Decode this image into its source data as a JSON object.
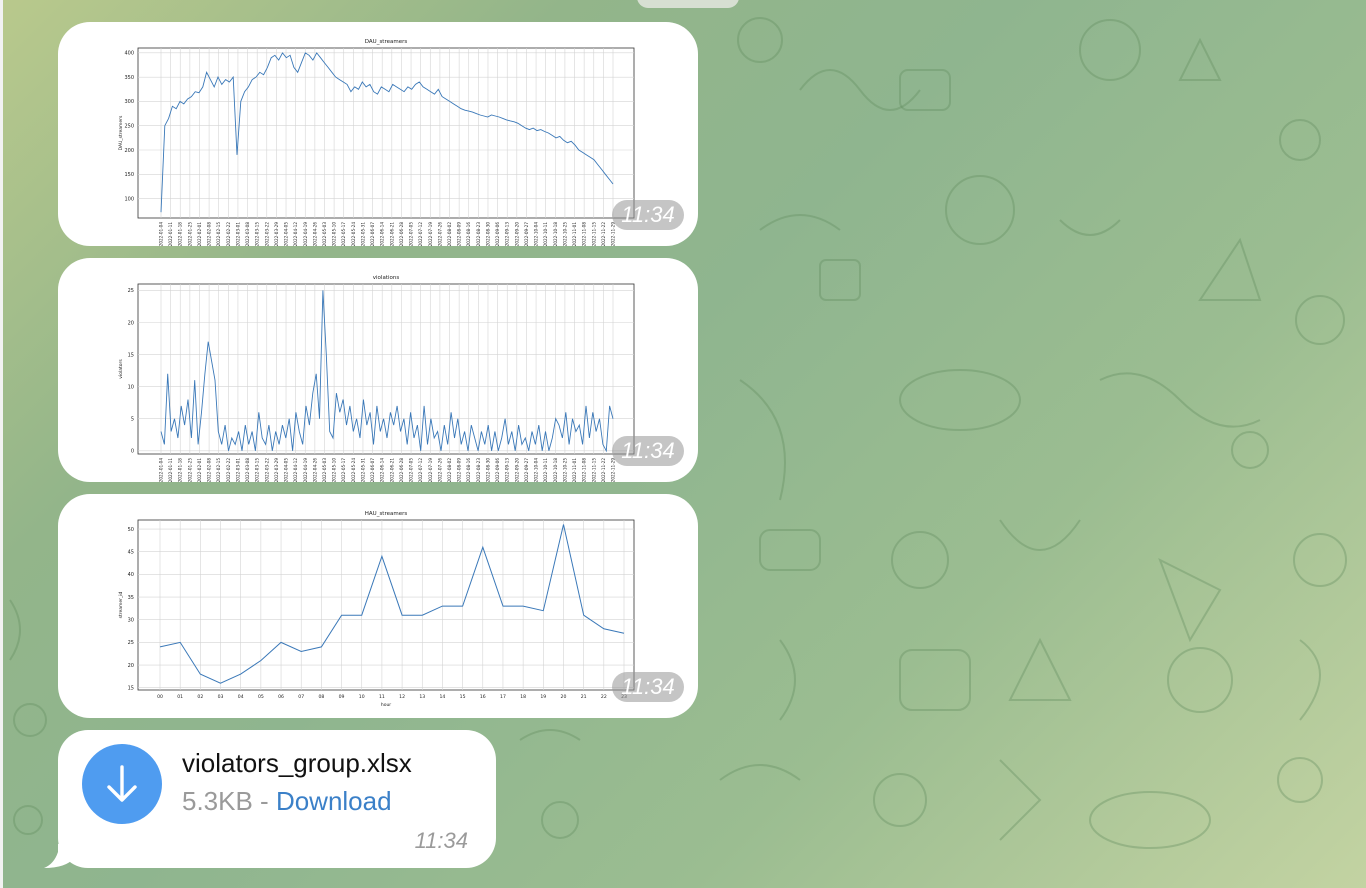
{
  "messages": [
    {
      "type": "photo",
      "time": "11:34",
      "chart_data": {
        "type": "line",
        "title": "DAU_streamers",
        "ylabel": "DAU_streamers",
        "xlabel": "",
        "ylim": [
          60,
          410
        ],
        "yticks": [
          100,
          150,
          200,
          250,
          300,
          350,
          400
        ],
        "x_tick_labels": [
          "2022-01-04",
          "2022-01-11",
          "2022-01-18",
          "2022-01-25",
          "2022-02-01",
          "2022-02-08",
          "2022-02-15",
          "2022-02-22",
          "2022-03-01",
          "2022-03-08",
          "2022-03-15",
          "2022-03-22",
          "2022-03-29",
          "2022-04-05",
          "2022-04-12",
          "2022-04-19",
          "2022-04-26",
          "2022-05-03",
          "2022-05-10",
          "2022-05-17",
          "2022-05-24",
          "2022-05-31",
          "2022-06-07",
          "2022-06-14",
          "2022-06-21",
          "2022-06-28",
          "2022-07-05",
          "2022-07-12",
          "2022-07-19",
          "2022-07-26",
          "2022-08-02",
          "2022-08-09",
          "2022-08-16",
          "2022-08-23",
          "2022-08-30",
          "2022-09-06",
          "2022-09-13",
          "2022-09-20",
          "2022-09-27",
          "2022-10-04",
          "2022-10-11",
          "2022-10-18",
          "2022-10-25",
          "2022-11-01",
          "2022-11-08",
          "2022-11-15",
          "2022-11-22",
          "2022-11-29"
        ],
        "grid": true,
        "series": [
          {
            "color": "#3a78b8",
            "values": [
              72,
              250,
              265,
              290,
              285,
              300,
              295,
              305,
              310,
              320,
              318,
              330,
              360,
              345,
              330,
              350,
              335,
              345,
              340,
              350,
              190,
              300,
              320,
              330,
              345,
              350,
              360,
              355,
              370,
              390,
              395,
              385,
              400,
              390,
              395,
              370,
              360,
              380,
              400,
              395,
              385,
              400,
              390,
              380,
              370,
              360,
              350,
              345,
              340,
              335,
              320,
              330,
              325,
              340,
              330,
              335,
              320,
              315,
              330,
              325,
              320,
              335,
              330,
              325,
              320,
              330,
              325,
              335,
              340,
              330,
              325,
              320,
              315,
              325,
              310,
              305,
              300,
              295,
              290,
              285,
              282,
              280,
              278,
              275,
              272,
              270,
              268,
              272,
              270,
              268,
              265,
              262,
              260,
              258,
              255,
              250,
              245,
              242,
              245,
              240,
              242,
              238,
              235,
              230,
              225,
              228,
              220,
              215,
              218,
              210,
              200,
              195,
              190,
              185,
              180,
              170,
              160,
              150,
              140,
              130
            ]
          }
        ]
      }
    },
    {
      "type": "photo",
      "time": "11:34",
      "chart_data": {
        "type": "line",
        "title": "violations",
        "ylabel": "violators",
        "xlabel": "",
        "ylim": [
          -0.5,
          26
        ],
        "yticks": [
          0,
          5,
          10,
          15,
          20,
          25
        ],
        "x_tick_labels": [
          "2022-01-04",
          "2022-01-11",
          "2022-01-18",
          "2022-01-25",
          "2022-02-01",
          "2022-02-08",
          "2022-02-15",
          "2022-02-22",
          "2022-03-01",
          "2022-03-08",
          "2022-03-15",
          "2022-03-22",
          "2022-03-29",
          "2022-04-05",
          "2022-04-12",
          "2022-04-19",
          "2022-04-26",
          "2022-05-03",
          "2022-05-10",
          "2022-05-17",
          "2022-05-24",
          "2022-05-31",
          "2022-06-07",
          "2022-06-14",
          "2022-06-21",
          "2022-06-28",
          "2022-07-05",
          "2022-07-12",
          "2022-07-19",
          "2022-07-26",
          "2022-08-02",
          "2022-08-09",
          "2022-08-16",
          "2022-08-23",
          "2022-08-30",
          "2022-09-06",
          "2022-09-13",
          "2022-09-20",
          "2022-09-27",
          "2022-10-04",
          "2022-10-11",
          "2022-10-18",
          "2022-10-25",
          "2022-11-01",
          "2022-11-08",
          "2022-11-15",
          "2022-11-22",
          "2022-11-29"
        ],
        "grid": true,
        "series": [
          {
            "color": "#3a78b8",
            "values": [
              3,
              1,
              12,
              3,
              5,
              2,
              7,
              4,
              8,
              2,
              11,
              1,
              6,
              12,
              17,
              14,
              11,
              3,
              1,
              4,
              0,
              2,
              1,
              3,
              0,
              4,
              1,
              3,
              0,
              6,
              2,
              1,
              4,
              0,
              3,
              1,
              4,
              2,
              5,
              0,
              6,
              3,
              1,
              7,
              4,
              9,
              12,
              5,
              25,
              15,
              3,
              2,
              9,
              6,
              8,
              4,
              7,
              3,
              5,
              2,
              8,
              4,
              6,
              1,
              7,
              3,
              5,
              2,
              6,
              4,
              7,
              3,
              5,
              1,
              6,
              2,
              4,
              0,
              7,
              1,
              5,
              2,
              3,
              0,
              4,
              1,
              6,
              2,
              5,
              1,
              3,
              0,
              4,
              2,
              0,
              3,
              1,
              4,
              0,
              3,
              0,
              2,
              5,
              1,
              3,
              0,
              4,
              1,
              2,
              0,
              3,
              1,
              4,
              0,
              3,
              0,
              2,
              5,
              4,
              2,
              6,
              1,
              5,
              3,
              4,
              1,
              7,
              2,
              6,
              3,
              5,
              1,
              0,
              7,
              5
            ]
          }
        ]
      }
    },
    {
      "type": "photo",
      "time": "11:34",
      "chart_data": {
        "type": "line",
        "title": "HAU_streamers",
        "ylabel": "streamer_id",
        "xlabel": "hour",
        "ylim": [
          14.5,
          52
        ],
        "yticks": [
          15,
          20,
          25,
          30,
          35,
          40,
          45,
          50
        ],
        "x": [
          "00",
          "01",
          "02",
          "03",
          "04",
          "05",
          "06",
          "07",
          "08",
          "09",
          "10",
          "11",
          "12",
          "13",
          "14",
          "15",
          "16",
          "17",
          "18",
          "19",
          "20",
          "21",
          "22",
          "23"
        ],
        "grid": true,
        "series": [
          {
            "color": "#3a78b8",
            "values": [
              24,
              25,
              18,
              16,
              18,
              21,
              25,
              23,
              24,
              31,
              31,
              44,
              31,
              31,
              33,
              33,
              46,
              33,
              33,
              32,
              51,
              31,
              28,
              27
            ]
          }
        ]
      }
    },
    {
      "type": "file",
      "file_name": "violators_group.xlsx",
      "file_size": "5.3KB",
      "separator": " - ",
      "download_label": "Download",
      "time": "11:34",
      "accent": "#4f9cf0"
    }
  ]
}
